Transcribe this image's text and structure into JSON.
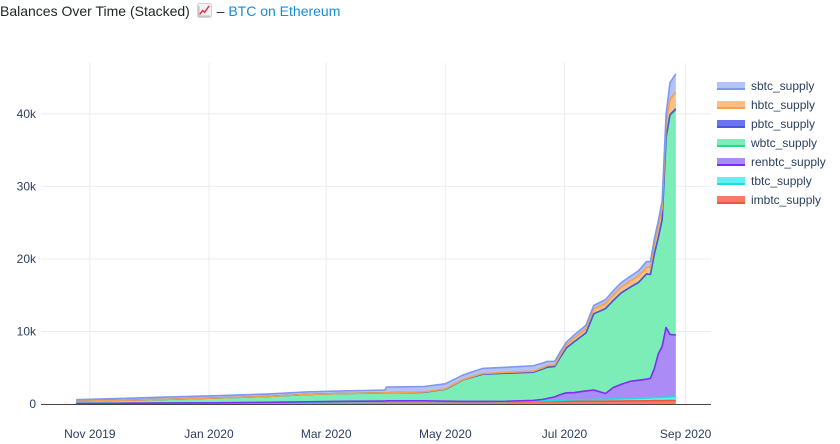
{
  "header": {
    "title": "Balances Over Time (Stacked)",
    "separator": "–",
    "link_label": "BTC on Ethereum"
  },
  "chart_data": {
    "type": "area",
    "stacked": true,
    "x_ticks": [
      "Nov 2019",
      "Jan 2020",
      "Mar 2020",
      "May 2020",
      "Jul 2020",
      "Sep 2020"
    ],
    "y_ticks": [
      "0",
      "10k",
      "20k",
      "30k",
      "40k"
    ],
    "ylim": [
      0,
      47000
    ],
    "grid": true,
    "legend_position": "right",
    "x": [
      "2019-10-25",
      "2019-11-15",
      "2019-12-10",
      "2020-01-05",
      "2020-02-01",
      "2020-02-20",
      "2020-03-10",
      "2020-03-31",
      "2020-04-01",
      "2020-04-20",
      "2020-05-01",
      "2020-05-10",
      "2020-05-20",
      "2020-06-01",
      "2020-06-15",
      "2020-06-20",
      "2020-06-22",
      "2020-06-26",
      "2020-06-29",
      "2020-07-02",
      "2020-07-06",
      "2020-07-12",
      "2020-07-16",
      "2020-07-22",
      "2020-07-26",
      "2020-07-30",
      "2020-08-04",
      "2020-08-08",
      "2020-08-12",
      "2020-08-14",
      "2020-08-16",
      "2020-08-18",
      "2020-08-20",
      "2020-08-22",
      "2020-08-24",
      "2020-08-27"
    ],
    "series": [
      {
        "name": "imbtc_supply",
        "color": "#ef553b",
        "fill": "#f87b6a",
        "values": [
          80,
          100,
          130,
          160,
          200,
          250,
          300,
          330,
          340,
          330,
          330,
          330,
          330,
          340,
          350,
          360,
          360,
          360,
          370,
          370,
          380,
          380,
          390,
          390,
          400,
          410,
          420,
          430,
          440,
          450,
          460,
          460,
          460,
          470,
          480,
          490
        ]
      },
      {
        "name": "tbtc_supply",
        "color": "#1fdee0",
        "fill": "#5ff1f1",
        "values": [
          0,
          0,
          0,
          0,
          0,
          0,
          0,
          0,
          0,
          0,
          0,
          0,
          0,
          20,
          50,
          80,
          100,
          120,
          140,
          170,
          200,
          220,
          240,
          260,
          280,
          300,
          330,
          350,
          380,
          400,
          420,
          440,
          460,
          480,
          500,
          520
        ]
      },
      {
        "name": "renbtc_supply",
        "color": "#7b2ff7",
        "fill": "#ab8cf7",
        "values": [
          0,
          0,
          0,
          10,
          30,
          50,
          70,
          80,
          100,
          120,
          60,
          20,
          20,
          20,
          100,
          200,
          300,
          500,
          800,
          1000,
          1000,
          1200,
          1300,
          800,
          1600,
          2000,
          2400,
          2500,
          2600,
          2700,
          4000,
          6000,
          7000,
          9600,
          8600,
          8500
        ]
      },
      {
        "name": "wbtc_supply",
        "color": "#2bd889",
        "fill": "#7cedb7",
        "values": [
          320,
          400,
          520,
          660,
          820,
          1020,
          1080,
          1130,
          1100,
          1160,
          1640,
          2970,
          3750,
          3860,
          3880,
          4200,
          4300,
          4200,
          5200,
          6200,
          7000,
          8000,
          10500,
          11700,
          12000,
          12600,
          13000,
          13500,
          14500,
          14300,
          15800,
          16000,
          17500,
          26200,
          30200,
          31000
        ]
      },
      {
        "name": "pbtc_supply",
        "color": "#4a55e0",
        "fill": "#6b73f0",
        "values": [
          0,
          0,
          0,
          0,
          0,
          0,
          0,
          0,
          0,
          0,
          0,
          0,
          0,
          0,
          0,
          0,
          0,
          0,
          0,
          0,
          0,
          0,
          0,
          0,
          0,
          0,
          0,
          0,
          0,
          0,
          0,
          0,
          0,
          0,
          100,
          200
        ]
      },
      {
        "name": "hbtc_supply",
        "color": "#f5a04a",
        "fill": "#fbbe83",
        "values": [
          0,
          0,
          0,
          0,
          0,
          0,
          0,
          0,
          0,
          50,
          50,
          50,
          100,
          120,
          140,
          160,
          200,
          200,
          300,
          400,
          500,
          600,
          650,
          700,
          750,
          800,
          850,
          900,
          950,
          1000,
          1200,
          1400,
          1600,
          1800,
          2100,
          2300
        ]
      },
      {
        "name": "sbtc_supply",
        "color": "#7e98f0",
        "fill": "#b3c2f8",
        "values": [
          200,
          250,
          300,
          320,
          340,
          350,
          360,
          380,
          800,
          750,
          700,
          620,
          700,
          700,
          750,
          650,
          600,
          500,
          450,
          400,
          430,
          460,
          500,
          540,
          580,
          620,
          660,
          700,
          760,
          800,
          850,
          900,
          950,
          1300,
          2300,
          2500
        ]
      }
    ]
  }
}
